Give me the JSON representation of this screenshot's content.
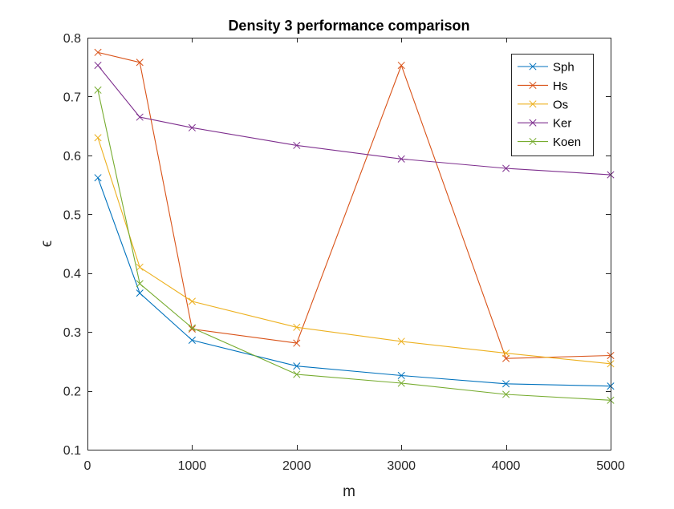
{
  "chart_data": {
    "type": "line",
    "title": "Density 3 performance comparison",
    "xlabel": "m",
    "ylabel": "ϵ",
    "xlim": [
      0,
      5000
    ],
    "ylim": [
      0.1,
      0.8
    ],
    "xticks": [
      0,
      1000,
      2000,
      3000,
      4000,
      5000
    ],
    "xtick_labels": [
      "0",
      "1000",
      "2000",
      "3000",
      "4000",
      "5000"
    ],
    "yticks": [
      0.1,
      0.2,
      0.3,
      0.4,
      0.5,
      0.6,
      0.7,
      0.8
    ],
    "ytick_labels": [
      "0.1",
      "0.2",
      "0.3",
      "0.4",
      "0.5",
      "0.6",
      "0.7",
      "0.8"
    ],
    "grid": false,
    "legend_position": "top-right",
    "marker": "x",
    "x": [
      100,
      500,
      1000,
      2000,
      3000,
      4000,
      5000
    ],
    "series": [
      {
        "name": "Sph",
        "color": "#0072BD",
        "values": [
          0.562,
          0.366,
          0.286,
          0.242,
          0.226,
          0.212,
          0.208
        ]
      },
      {
        "name": "Hs",
        "color": "#D95319",
        "values": [
          0.775,
          0.758,
          0.305,
          0.281,
          0.753,
          0.255,
          0.26
        ]
      },
      {
        "name": "Os",
        "color": "#EDB120",
        "values": [
          0.63,
          0.41,
          0.352,
          0.308,
          0.284,
          0.264,
          0.246
        ]
      },
      {
        "name": "Ker",
        "color": "#7E2F8E",
        "values": [
          0.753,
          0.665,
          0.647,
          0.617,
          0.594,
          0.578,
          0.567
        ]
      },
      {
        "name": "Koen",
        "color": "#77AC30",
        "values": [
          0.711,
          0.382,
          0.307,
          0.228,
          0.213,
          0.194,
          0.184
        ]
      }
    ]
  }
}
